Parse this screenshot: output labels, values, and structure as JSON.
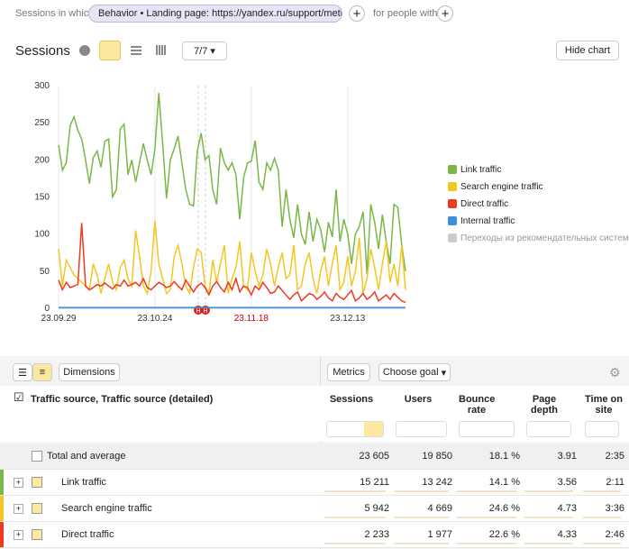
{
  "filter": {
    "prefix": "Sessions in which",
    "chip": "Behavior • Landing page: https://yandex.ru/support/metrica/",
    "people": "for people with"
  },
  "report": {
    "title": "Sessions",
    "goals": "7/7",
    "hide_chart": "Hide chart"
  },
  "chart_data": {
    "type": "line",
    "x": [
      "23.09.29",
      "23.09.30",
      "23.10.01",
      "23.10.02",
      "23.10.03",
      "23.10.04",
      "23.10.05",
      "23.10.06",
      "23.10.07",
      "23.10.08",
      "23.10.09",
      "23.10.10",
      "23.10.11",
      "23.10.12",
      "23.10.13",
      "23.10.14",
      "23.10.15",
      "23.10.16",
      "23.10.17",
      "23.10.18",
      "23.10.19",
      "23.10.20",
      "23.10.21",
      "23.10.22",
      "23.10.23",
      "23.10.24",
      "23.10.25",
      "23.10.26",
      "23.10.27",
      "23.10.28",
      "23.10.29",
      "23.10.30",
      "23.10.31",
      "23.11.01",
      "23.11.02",
      "23.11.03",
      "23.11.04",
      "23.11.05",
      "23.11.06",
      "23.11.07",
      "23.11.08",
      "23.11.09",
      "23.11.10",
      "23.11.11",
      "23.11.12",
      "23.11.13",
      "23.11.14",
      "23.11.15",
      "23.11.16",
      "23.11.17",
      "23.11.18",
      "23.11.19",
      "23.11.20",
      "23.11.21",
      "23.11.22",
      "23.11.23",
      "23.11.24",
      "23.11.25",
      "23.11.26",
      "23.11.27",
      "23.11.28",
      "23.11.29",
      "23.11.30",
      "23.12.01",
      "23.12.02",
      "23.12.03",
      "23.12.04",
      "23.12.05",
      "23.12.06",
      "23.12.07",
      "23.12.08",
      "23.12.09",
      "23.12.10",
      "23.12.11",
      "23.12.12",
      "23.12.13",
      "23.12.14",
      "23.12.15",
      "23.12.16",
      "23.12.17",
      "23.12.18",
      "23.12.19",
      "23.12.20",
      "23.12.21",
      "23.12.22",
      "23.12.23",
      "23.12.24",
      "23.12.25",
      "23.12.26",
      "23.12.27",
      "23.12.28"
    ],
    "xticks": [
      "23.09.29",
      "23.10.24",
      "23.11.18",
      "23.12.13"
    ],
    "xtick_colors": [
      "#333333",
      "#333333",
      "#cc0000",
      "#333333"
    ],
    "annotations": [
      "H",
      "H"
    ],
    "ylim": [
      0,
      300
    ],
    "yticks": [
      0,
      50,
      100,
      150,
      200,
      250,
      300
    ],
    "series": [
      {
        "name": "Link traffic",
        "color": "#7ab648",
        "values": [
          220,
          186,
          196,
          246,
          258,
          240,
          228,
          200,
          168,
          203,
          212,
          190,
          225,
          228,
          150,
          160,
          242,
          248,
          180,
          200,
          170,
          196,
          222,
          200,
          180,
          215,
          290,
          222,
          148,
          200,
          215,
          232,
          195,
          160,
          140,
          138,
          212,
          236,
          200,
          206,
          160,
          140,
          216,
          196,
          186,
          196,
          180,
          120,
          176,
          196,
          198,
          226,
          170,
          160,
          196,
          186,
          202,
          186,
          110,
          160,
          120,
          95,
          140,
          100,
          86,
          130,
          90,
          120,
          106,
          76,
          116,
          96,
          160,
          90,
          120,
          100,
          60,
          100,
          110,
          130,
          46,
          140,
          116,
          80,
          126,
          90,
          60,
          140,
          136,
          86,
          50
        ]
      },
      {
        "name": "Search engine traffic",
        "color": "#f5c623",
        "values": [
          80,
          30,
          65,
          55,
          45,
          40,
          35,
          30,
          25,
          60,
          45,
          20,
          40,
          60,
          35,
          25,
          55,
          65,
          40,
          30,
          105,
          70,
          30,
          20,
          50,
          118,
          60,
          40,
          20,
          25,
          70,
          85,
          60,
          30,
          20,
          55,
          80,
          75,
          30,
          20,
          65,
          35,
          60,
          85,
          20,
          40,
          55,
          90,
          30,
          25,
          75,
          50,
          30,
          45,
          80,
          60,
          30,
          55,
          75,
          40,
          45,
          85,
          25,
          30,
          60,
          75,
          40,
          20,
          50,
          70,
          30,
          60,
          85,
          25,
          35,
          70,
          30,
          50,
          95,
          20,
          40,
          80,
          55,
          25,
          60,
          90,
          35,
          60,
          30,
          85,
          25
        ]
      },
      {
        "name": "Direct traffic",
        "color": "#ee3a1e",
        "values": [
          38,
          25,
          35,
          28,
          30,
          32,
          115,
          30,
          25,
          28,
          32,
          30,
          34,
          30,
          26,
          32,
          30,
          38,
          30,
          32,
          35,
          30,
          40,
          28,
          25,
          30,
          35,
          32,
          28,
          30,
          36,
          30,
          25,
          38,
          30,
          22,
          30,
          34,
          28,
          18,
          30,
          36,
          28,
          22,
          35,
          25,
          40,
          22,
          30,
          28,
          18,
          30,
          25,
          35,
          28,
          20,
          22,
          30,
          24,
          18,
          12,
          18,
          22,
          10,
          15,
          20,
          18,
          12,
          16,
          22,
          14,
          10,
          20,
          15,
          12,
          18,
          24,
          10,
          14,
          20,
          12,
          16,
          22,
          10,
          14,
          18,
          12,
          20,
          15,
          10,
          8
        ]
      },
      {
        "name": "Internal traffic",
        "color": "#3d8ee0",
        "values": [
          1,
          1,
          1,
          1,
          1,
          1,
          1,
          1,
          1,
          1,
          1,
          1,
          1,
          1,
          1,
          1,
          1,
          1,
          1,
          1,
          1,
          1,
          1,
          1,
          1,
          1,
          1,
          1,
          1,
          1,
          1,
          1,
          1,
          1,
          1,
          1,
          1,
          1,
          1,
          1,
          1,
          1,
          1,
          1,
          1,
          1,
          1,
          1,
          1,
          1,
          1,
          1,
          1,
          1,
          1,
          1,
          1,
          1,
          1,
          1,
          1,
          1,
          1,
          1,
          1,
          1,
          1,
          1,
          1,
          1,
          1,
          1,
          1,
          1,
          1,
          1,
          1,
          1,
          1,
          1,
          1,
          1,
          1,
          1,
          1,
          1,
          1,
          1,
          1,
          1,
          1
        ]
      }
    ],
    "legend_extra": {
      "name": "Переходы из рекомендательных систем",
      "color": "#cccccc"
    }
  },
  "toolbar": {
    "dimensions": "Dimensions",
    "metrics": "Metrics",
    "goal": "Choose goal"
  },
  "table": {
    "dimension_header": "Traffic source, Traffic source (detailed)",
    "columns": [
      "Sessions",
      "Users",
      "Bounce rate",
      "Page depth",
      "Time on site"
    ],
    "rows": [
      {
        "label": "Total and average",
        "cells": [
          "23 605",
          "19 850",
          "18.1 %",
          "3.91",
          "2:35"
        ]
      },
      {
        "label": "Link traffic",
        "cells": [
          "15 211",
          "13 242",
          "14.1 %",
          "3.56",
          "2:11"
        ]
      },
      {
        "label": "Search engine traffic",
        "cells": [
          "5 942",
          "4 669",
          "24.6 %",
          "4.73",
          "3:36"
        ]
      },
      {
        "label": "Direct traffic",
        "cells": [
          "2 233",
          "1 977",
          "22.6 %",
          "4.33",
          "2:46"
        ]
      }
    ]
  }
}
